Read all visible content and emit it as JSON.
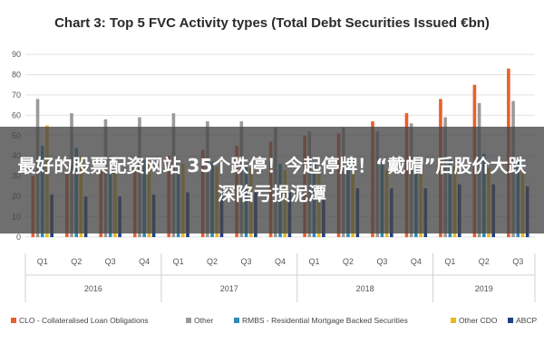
{
  "chart_data": {
    "type": "bar",
    "title": "Chart 3: Top 5 FVC Activity types (Total Debt Securities Issued €bn)",
    "ylim": [
      0,
      90
    ],
    "yticks": [
      0,
      10,
      20,
      30,
      40,
      50,
      60,
      70,
      80,
      90
    ],
    "categories": [
      "Q1",
      "Q2",
      "Q3",
      "Q4",
      "Q1",
      "Q2",
      "Q3",
      "Q4",
      "Q1",
      "Q2",
      "Q3",
      "Q4",
      "Q1",
      "Q2",
      "Q3"
    ],
    "year_groups": [
      {
        "label": "2016",
        "count": 4
      },
      {
        "label": "2017",
        "count": 4
      },
      {
        "label": "2018",
        "count": 4
      },
      {
        "label": "2019",
        "count": 3
      }
    ],
    "legend_position": "bottom",
    "series": [
      {
        "name": "CLO - Collateralised Loan Obligations",
        "color": "#e8602c",
        "values": [
          30,
          31,
          33,
          35,
          40,
          43,
          45,
          47,
          50,
          51,
          57,
          61,
          68,
          75,
          83
        ]
      },
      {
        "name": "Other",
        "color": "#9a9a9a",
        "values": [
          68,
          61,
          58,
          59,
          61,
          57,
          57,
          54,
          52,
          54,
          52,
          56,
          59,
          66,
          67
        ]
      },
      {
        "name": "RMBS - Residential Mortgage Backed Securities",
        "color": "#2e8bb5",
        "values": [
          45,
          44,
          40,
          38,
          36,
          37,
          36,
          36,
          37,
          38,
          37,
          36,
          38,
          41,
          39
        ]
      },
      {
        "name": "Other CDO",
        "color": "#e8b820",
        "values": [
          55,
          40,
          38,
          37,
          36,
          35,
          34,
          33,
          34,
          33,
          33,
          33,
          35,
          34,
          33
        ]
      },
      {
        "name": "ABCP",
        "color": "#1f3f86",
        "values": [
          21,
          20,
          20,
          21,
          22,
          21,
          22,
          22,
          23,
          24,
          24,
          24,
          26,
          26,
          25
        ]
      }
    ]
  },
  "overlay": {
    "text": "最好的股票配资网站 35个跌停！今起停牌！“戴帽”后股价大跌 深陷亏损泥潭"
  }
}
